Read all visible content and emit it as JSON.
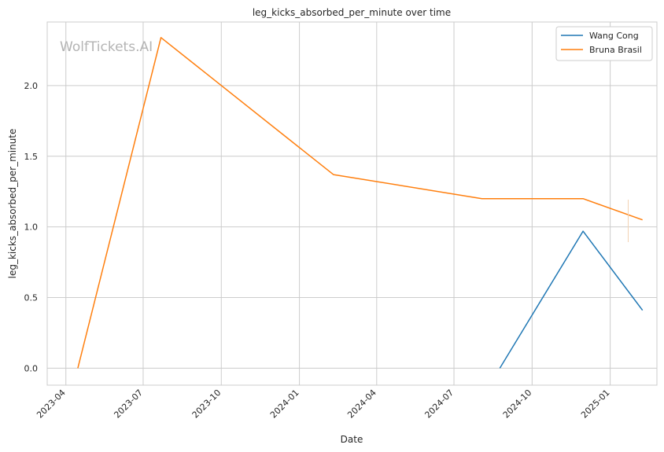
{
  "chart_data": {
    "type": "line",
    "title": "leg_kicks_absorbed_per_minute over time",
    "xlabel": "Date",
    "ylabel": "leg_kicks_absorbed_per_minute",
    "watermark": "WolfTickets.AI",
    "x_ticks": [
      "2023-04",
      "2023-07",
      "2023-10",
      "2024-01",
      "2024-04",
      "2024-07",
      "2024-10",
      "2025-01"
    ],
    "y_ticks": [
      "0.0",
      "0.5",
      "1.0",
      "1.5",
      "2.0"
    ],
    "ylim": [
      -0.12,
      2.45
    ],
    "xlim": [
      "2023-03-10",
      "2025-02-25"
    ],
    "grid": true,
    "legend_position": "top-right",
    "series": [
      {
        "name": "Wang Cong",
        "color": "#1f77b4",
        "points": [
          {
            "x": "2024-08-24",
            "y": 0.0
          },
          {
            "x": "2024-11-30",
            "y": 0.97
          },
          {
            "x": "2025-02-08",
            "y": 0.41
          }
        ]
      },
      {
        "name": "Bruna Brasil",
        "color": "#ff7f0e",
        "points": [
          {
            "x": "2023-04-15",
            "y": 0.0
          },
          {
            "x": "2023-07-22",
            "y": 2.34
          },
          {
            "x": "2024-02-10",
            "y": 1.37
          },
          {
            "x": "2024-08-03",
            "y": 1.2
          },
          {
            "x": "2024-11-30",
            "y": 1.2
          },
          {
            "x": "2025-02-08",
            "y": 1.05
          }
        ]
      }
    ]
  }
}
